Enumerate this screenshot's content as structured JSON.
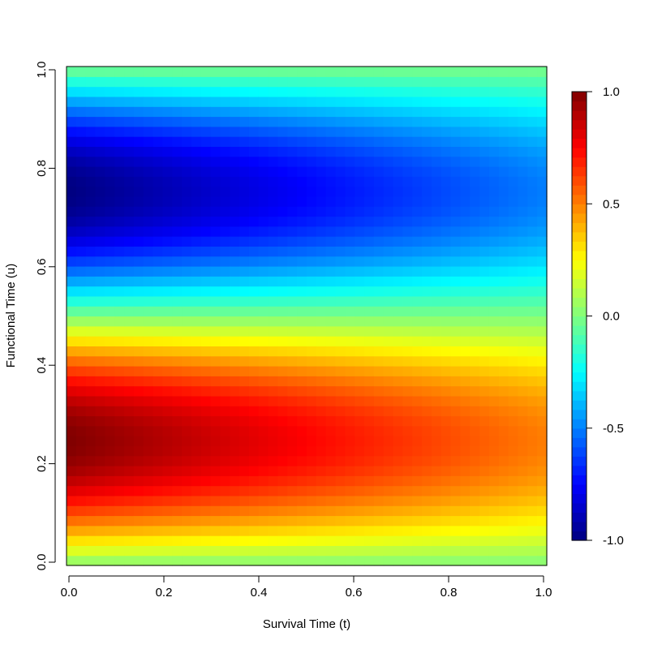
{
  "chart_data": {
    "type": "heatmap",
    "title": "",
    "xlabel": "Survival Time (t)",
    "ylabel": "Functional Time (u)",
    "xlim": [
      0,
      1
    ],
    "ylim": [
      0,
      1
    ],
    "xticks": [
      "0.0",
      "0.2",
      "0.4",
      "0.6",
      "0.8",
      "1.0"
    ],
    "yticks": [
      "0.0",
      "0.2",
      "0.4",
      "0.6",
      "0.8",
      "1.0"
    ],
    "x_tick_values": [
      0,
      0.2,
      0.4,
      0.6,
      0.8,
      1.0
    ],
    "y_tick_values": [
      0,
      0.2,
      0.4,
      0.6,
      0.8,
      1.0
    ],
    "grid": false,
    "colorbar": {
      "range": [
        -1,
        1
      ],
      "ticks": [
        "-1.0",
        "-0.5",
        "0.0",
        "0.5",
        "1.0"
      ],
      "tick_values": [
        -1.0,
        -0.5,
        0.0,
        0.5,
        1.0
      ],
      "colormap": "jet"
    },
    "surface": {
      "description_formula": "z(t,u) = sin(2*pi*u) * (1 - 0.5*t)",
      "grid_n_t": 50,
      "grid_n_u": 50
    },
    "colors": {
      "jet_stops": [
        "#00007F",
        "#0000FF",
        "#007FFF",
        "#00FFFF",
        "#7FFF7F",
        "#FFFF00",
        "#FF7F00",
        "#FF0000",
        "#7F0000"
      ]
    }
  }
}
